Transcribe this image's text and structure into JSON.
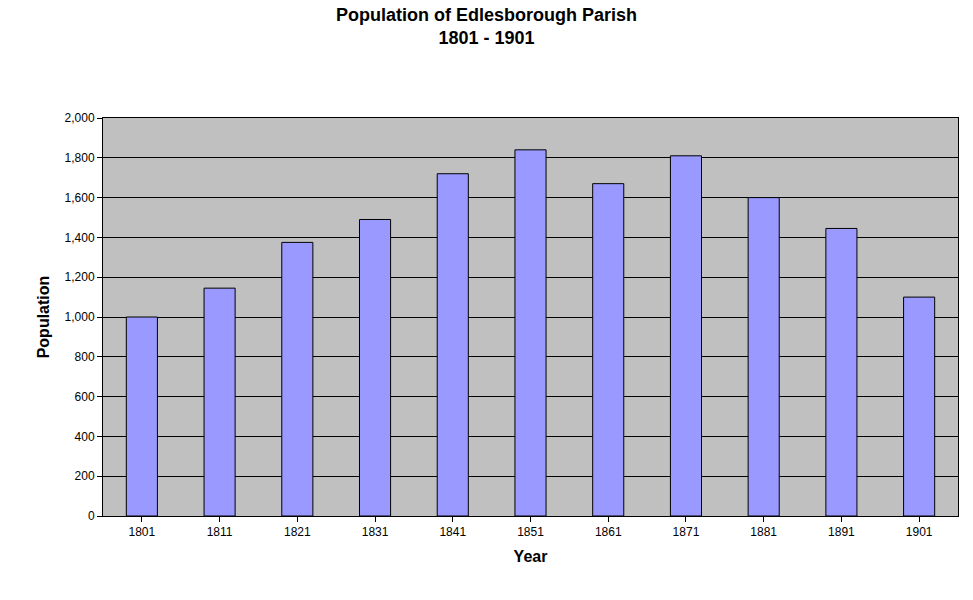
{
  "chart_data": {
    "type": "bar",
    "title": "Population of Edlesborough Parish",
    "subtitle": "1801 - 1901",
    "x_label": "Year",
    "y_label": "Population",
    "categories": [
      "1801",
      "1811",
      "1821",
      "1831",
      "1841",
      "1851",
      "1861",
      "1871",
      "1881",
      "1891",
      "1901"
    ],
    "values": [
      1000,
      1145,
      1375,
      1490,
      1720,
      1840,
      1670,
      1810,
      1600,
      1445,
      1100
    ],
    "color": "#9999ff",
    "ylim": [
      0,
      2000
    ],
    "yticks": [
      0,
      200,
      400,
      600,
      800,
      {
        "value": 1000,
        "label": "1,000"
      },
      {
        "value": 1200,
        "label": "1,200"
      },
      {
        "value": 1400,
        "label": "1,400"
      },
      {
        "value": 1600,
        "label": "1,600"
      },
      {
        "value": 1800,
        "label": "1,800"
      },
      {
        "value": 2000,
        "label": "2,000"
      }
    ],
    "grid": true
  }
}
